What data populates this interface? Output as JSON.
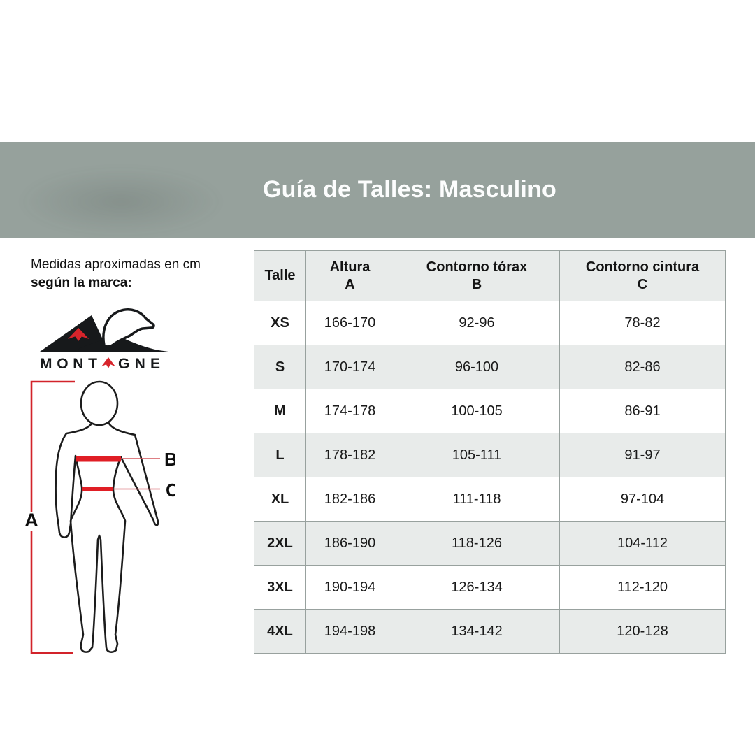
{
  "header": {
    "title": "Guía de Talles: Masculino"
  },
  "left_panel": {
    "note_line1": "Medidas aproximadas en cm",
    "note_line2": "según la marca:",
    "brand": {
      "name": "Montagne",
      "wordmark_left": "MONT",
      "wordmark_right": "GNE"
    },
    "diagram": {
      "height_label": "A",
      "chest_label": "B",
      "waist_label": "C"
    }
  },
  "table": {
    "columns": [
      {
        "label": "Talle",
        "letter": ""
      },
      {
        "label": "Altura",
        "letter": "A"
      },
      {
        "label": "Contorno tórax",
        "letter": "B"
      },
      {
        "label": "Contorno cintura",
        "letter": "C"
      }
    ],
    "rows": [
      {
        "talle": "XS",
        "altura": "166-170",
        "torax": "92-96",
        "cintura": "78-82"
      },
      {
        "talle": "S",
        "altura": "170-174",
        "torax": "96-100",
        "cintura": "82-86"
      },
      {
        "talle": "M",
        "altura": "174-178",
        "torax": "100-105",
        "cintura": "86-91"
      },
      {
        "talle": "L",
        "altura": "178-182",
        "torax": "105-111",
        "cintura": "91-97"
      },
      {
        "talle": "XL",
        "altura": "182-186",
        "torax": "111-118",
        "cintura": "97-104"
      },
      {
        "talle": "2XL",
        "altura": "186-190",
        "torax": "118-126",
        "cintura": "104-112"
      },
      {
        "talle": "3XL",
        "altura": "190-194",
        "torax": "126-134",
        "cintura": "112-120"
      },
      {
        "talle": "4XL",
        "altura": "194-198",
        "torax": "134-142",
        "cintura": "120-128"
      }
    ]
  },
  "colors": {
    "band": "#96a19c",
    "row_alt": "#e8ebea",
    "table_border": "#98a19e",
    "accent_red": "#e01e25",
    "logo_red": "#d7242b",
    "text": "#141414"
  }
}
